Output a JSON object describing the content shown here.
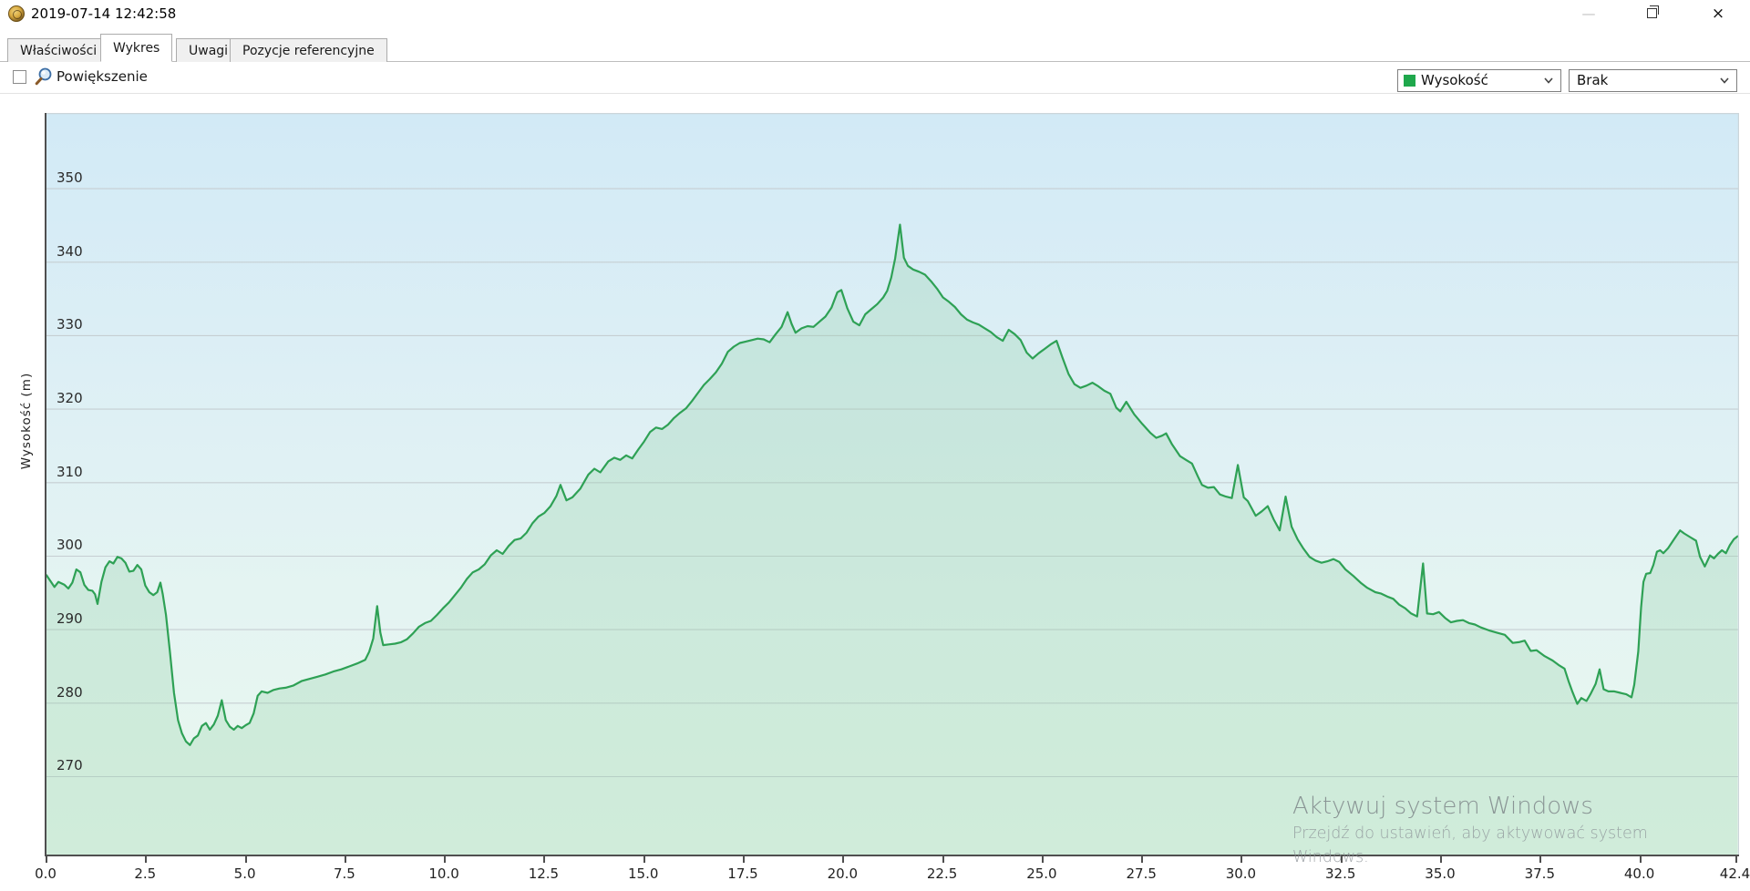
{
  "window": {
    "title": "2019-07-14 12:42:58",
    "controls": {
      "minimize": "—",
      "close": "×"
    }
  },
  "tabs": [
    {
      "label": "Właściwości",
      "active": false
    },
    {
      "label": "Wykres",
      "active": true
    },
    {
      "label": "Uwagi",
      "active": false
    },
    {
      "label": "Pozycje referencyjne",
      "active": false
    }
  ],
  "toolbar": {
    "zoom_label": "Powiększenie",
    "zoom_checkbox_checked": false,
    "series_select": {
      "value": "Wysokość",
      "swatch_color": "#1fa84c"
    },
    "overlay_select": {
      "value": "Brak"
    }
  },
  "watermark": {
    "line1": "Aktywuj system Windows",
    "line2": "Przejdź do ustawień, aby aktywować system",
    "line3": "Windows."
  },
  "colors": {
    "line": "#2ea155",
    "area_fill": "rgba(150,210,170,0.30)",
    "grid": "#c6ced2",
    "axis": "#4f4f4f"
  },
  "chart_data": {
    "type": "line",
    "title": "",
    "xlabel": "",
    "ylabel": "Wysokość (m)",
    "series_name": "Wysokość",
    "x_unit_hint": "distance (km)",
    "xlim": [
      0,
      42.48
    ],
    "ylim": [
      259.4,
      360.3
    ],
    "x_ticks": [
      0,
      2.5,
      5,
      7.5,
      10,
      12.5,
      15,
      17.5,
      20,
      22.5,
      25,
      27.5,
      30,
      32.5,
      35,
      37.5,
      40,
      42.4
    ],
    "y_ticks": [
      270,
      280,
      290,
      300,
      310,
      320,
      330,
      340,
      350
    ],
    "grid": "horizontal",
    "legend": "none",
    "points": [
      [
        0,
        297.4
      ],
      [
        0.1,
        296.6
      ],
      [
        0.2,
        295.8
      ],
      [
        0.3,
        296.5
      ],
      [
        0.45,
        296.1
      ],
      [
        0.55,
        295.6
      ],
      [
        0.65,
        296.4
      ],
      [
        0.75,
        298.2
      ],
      [
        0.85,
        297.8
      ],
      [
        0.95,
        296.1
      ],
      [
        1.05,
        295.4
      ],
      [
        1.15,
        295.3
      ],
      [
        1.22,
        294.8
      ],
      [
        1.28,
        293.5
      ],
      [
        1.38,
        296.5
      ],
      [
        1.48,
        298.5
      ],
      [
        1.58,
        299.3
      ],
      [
        1.68,
        299
      ],
      [
        1.78,
        299.9
      ],
      [
        1.88,
        299.7
      ],
      [
        1.98,
        299.1
      ],
      [
        2.08,
        297.9
      ],
      [
        2.18,
        298
      ],
      [
        2.28,
        298.8
      ],
      [
        2.38,
        298.2
      ],
      [
        2.48,
        296
      ],
      [
        2.58,
        295.1
      ],
      [
        2.68,
        294.7
      ],
      [
        2.78,
        295.1
      ],
      [
        2.86,
        296.4
      ],
      [
        2.92,
        294.8
      ],
      [
        3,
        292
      ],
      [
        3.1,
        286.9
      ],
      [
        3.2,
        281.4
      ],
      [
        3.3,
        277.7
      ],
      [
        3.4,
        275.9
      ],
      [
        3.5,
        274.8
      ],
      [
        3.6,
        274.3
      ],
      [
        3.7,
        275.2
      ],
      [
        3.8,
        275.6
      ],
      [
        3.9,
        276.9
      ],
      [
        4,
        277.3
      ],
      [
        4.1,
        276.4
      ],
      [
        4.2,
        277.1
      ],
      [
        4.3,
        278.3
      ],
      [
        4.4,
        280.4
      ],
      [
        4.5,
        277.7
      ],
      [
        4.6,
        276.8
      ],
      [
        4.7,
        276.4
      ],
      [
        4.8,
        276.9
      ],
      [
        4.9,
        276.6
      ],
      [
        5,
        277
      ],
      [
        5.1,
        277.3
      ],
      [
        5.2,
        278.6
      ],
      [
        5.3,
        281
      ],
      [
        5.4,
        281.6
      ],
      [
        5.55,
        281.4
      ],
      [
        5.7,
        281.8
      ],
      [
        5.85,
        282
      ],
      [
        6,
        282.1
      ],
      [
        6.2,
        282.4
      ],
      [
        6.4,
        283
      ],
      [
        6.6,
        283.3
      ],
      [
        6.8,
        283.6
      ],
      [
        7,
        283.9
      ],
      [
        7.2,
        284.3
      ],
      [
        7.4,
        284.6
      ],
      [
        7.6,
        285
      ],
      [
        7.8,
        285.4
      ],
      [
        8,
        285.9
      ],
      [
        8.1,
        287
      ],
      [
        8.2,
        288.8
      ],
      [
        8.3,
        293.2
      ],
      [
        8.38,
        289.6
      ],
      [
        8.45,
        287.9
      ],
      [
        8.6,
        288
      ],
      [
        8.75,
        288.1
      ],
      [
        8.9,
        288.3
      ],
      [
        9.05,
        288.7
      ],
      [
        9.2,
        289.5
      ],
      [
        9.35,
        290.4
      ],
      [
        9.5,
        290.9
      ],
      [
        9.65,
        291.2
      ],
      [
        9.8,
        292
      ],
      [
        9.95,
        292.9
      ],
      [
        10.1,
        293.7
      ],
      [
        10.25,
        294.7
      ],
      [
        10.4,
        295.7
      ],
      [
        10.55,
        296.9
      ],
      [
        10.7,
        297.8
      ],
      [
        10.85,
        298.2
      ],
      [
        11,
        298.9
      ],
      [
        11.15,
        300.1
      ],
      [
        11.3,
        300.8
      ],
      [
        11.45,
        300.3
      ],
      [
        11.6,
        301.4
      ],
      [
        11.75,
        302.2
      ],
      [
        11.9,
        302.4
      ],
      [
        12.05,
        303.2
      ],
      [
        12.2,
        304.5
      ],
      [
        12.35,
        305.4
      ],
      [
        12.5,
        305.9
      ],
      [
        12.65,
        306.8
      ],
      [
        12.8,
        308.2
      ],
      [
        12.9,
        309.7
      ],
      [
        13.05,
        307.6
      ],
      [
        13.2,
        308
      ],
      [
        13.4,
        309.2
      ],
      [
        13.6,
        311.1
      ],
      [
        13.75,
        311.9
      ],
      [
        13.9,
        311.4
      ],
      [
        14.1,
        312.9
      ],
      [
        14.25,
        313.4
      ],
      [
        14.4,
        313.1
      ],
      [
        14.55,
        313.7
      ],
      [
        14.7,
        313.3
      ],
      [
        14.85,
        314.5
      ],
      [
        15,
        315.6
      ],
      [
        15.15,
        316.9
      ],
      [
        15.3,
        317.5
      ],
      [
        15.45,
        317.3
      ],
      [
        15.6,
        317.9
      ],
      [
        15.75,
        318.8
      ],
      [
        15.9,
        319.5
      ],
      [
        16.05,
        320.1
      ],
      [
        16.2,
        321.1
      ],
      [
        16.35,
        322.2
      ],
      [
        16.5,
        323.3
      ],
      [
        16.65,
        324.1
      ],
      [
        16.8,
        325
      ],
      [
        16.95,
        326.2
      ],
      [
        17.1,
        327.8
      ],
      [
        17.25,
        328.5
      ],
      [
        17.4,
        329
      ],
      [
        17.55,
        329.2
      ],
      [
        17.7,
        329.4
      ],
      [
        17.85,
        329.6
      ],
      [
        18,
        329.5
      ],
      [
        18.15,
        329.1
      ],
      [
        18.3,
        330.2
      ],
      [
        18.45,
        331.2
      ],
      [
        18.6,
        333.2
      ],
      [
        18.7,
        331.6
      ],
      [
        18.8,
        330.4
      ],
      [
        18.95,
        331
      ],
      [
        19.1,
        331.3
      ],
      [
        19.25,
        331.2
      ],
      [
        19.4,
        331.9
      ],
      [
        19.55,
        332.6
      ],
      [
        19.7,
        333.8
      ],
      [
        19.85,
        335.9
      ],
      [
        19.95,
        336.2
      ],
      [
        20.1,
        333.7
      ],
      [
        20.25,
        331.9
      ],
      [
        20.4,
        331.4
      ],
      [
        20.55,
        332.9
      ],
      [
        20.7,
        333.6
      ],
      [
        20.85,
        334.3
      ],
      [
        21,
        335.2
      ],
      [
        21.1,
        336.1
      ],
      [
        21.2,
        337.9
      ],
      [
        21.3,
        340.5
      ],
      [
        21.42,
        345.1
      ],
      [
        21.52,
        340.6
      ],
      [
        21.62,
        339.5
      ],
      [
        21.75,
        339
      ],
      [
        21.9,
        338.7
      ],
      [
        22.05,
        338.3
      ],
      [
        22.2,
        337.4
      ],
      [
        22.35,
        336.4
      ],
      [
        22.5,
        335.2
      ],
      [
        22.65,
        334.6
      ],
      [
        22.8,
        333.9
      ],
      [
        22.95,
        332.9
      ],
      [
        23.1,
        332.2
      ],
      [
        23.25,
        331.8
      ],
      [
        23.4,
        331.5
      ],
      [
        23.55,
        331
      ],
      [
        23.7,
        330.5
      ],
      [
        23.85,
        329.8
      ],
      [
        24,
        329.3
      ],
      [
        24.15,
        330.8
      ],
      [
        24.3,
        330.2
      ],
      [
        24.45,
        329.4
      ],
      [
        24.6,
        327.7
      ],
      [
        24.75,
        326.9
      ],
      [
        24.9,
        327.6
      ],
      [
        25.05,
        328.2
      ],
      [
        25.2,
        328.8
      ],
      [
        25.35,
        329.3
      ],
      [
        25.5,
        327
      ],
      [
        25.65,
        324.8
      ],
      [
        25.8,
        323.4
      ],
      [
        25.95,
        322.9
      ],
      [
        26.1,
        323.2
      ],
      [
        26.25,
        323.6
      ],
      [
        26.4,
        323.1
      ],
      [
        26.55,
        322.5
      ],
      [
        26.7,
        322.1
      ],
      [
        26.85,
        320.2
      ],
      [
        26.95,
        319.7
      ],
      [
        27.1,
        321
      ],
      [
        27.3,
        319.3
      ],
      [
        27.5,
        318
      ],
      [
        27.7,
        316.8
      ],
      [
        27.85,
        316.1
      ],
      [
        28,
        316.4
      ],
      [
        28.1,
        316.7
      ],
      [
        28.25,
        315.2
      ],
      [
        28.45,
        313.6
      ],
      [
        28.6,
        313.1
      ],
      [
        28.75,
        312.6
      ],
      [
        28.9,
        310.8
      ],
      [
        29,
        309.7
      ],
      [
        29.15,
        309.3
      ],
      [
        29.3,
        309.4
      ],
      [
        29.45,
        308.4
      ],
      [
        29.6,
        308.1
      ],
      [
        29.75,
        307.9
      ],
      [
        29.9,
        312.4
      ],
      [
        30.05,
        308
      ],
      [
        30.15,
        307.5
      ],
      [
        30.35,
        305.5
      ],
      [
        30.5,
        306.1
      ],
      [
        30.65,
        306.8
      ],
      [
        30.8,
        305
      ],
      [
        30.95,
        303.5
      ],
      [
        31.1,
        308.1
      ],
      [
        31.25,
        304
      ],
      [
        31.4,
        302.3
      ],
      [
        31.55,
        301
      ],
      [
        31.7,
        299.9
      ],
      [
        31.85,
        299.4
      ],
      [
        32,
        299.1
      ],
      [
        32.15,
        299.3
      ],
      [
        32.3,
        299.6
      ],
      [
        32.45,
        299.2
      ],
      [
        32.6,
        298.2
      ],
      [
        32.8,
        297.3
      ],
      [
        33,
        296.3
      ],
      [
        33.15,
        295.7
      ],
      [
        33.35,
        295.1
      ],
      [
        33.5,
        294.9
      ],
      [
        33.65,
        294.5
      ],
      [
        33.8,
        294.2
      ],
      [
        33.95,
        293.4
      ],
      [
        34.1,
        292.9
      ],
      [
        34.25,
        292.2
      ],
      [
        34.4,
        291.8
      ],
      [
        34.55,
        299
      ],
      [
        34.65,
        292.2
      ],
      [
        34.8,
        292.1
      ],
      [
        34.95,
        292.4
      ],
      [
        35.1,
        291.6
      ],
      [
        35.25,
        291
      ],
      [
        35.4,
        291.2
      ],
      [
        35.55,
        291.3
      ],
      [
        35.7,
        290.9
      ],
      [
        35.85,
        290.7
      ],
      [
        36,
        290.3
      ],
      [
        36.2,
        289.9
      ],
      [
        36.4,
        289.6
      ],
      [
        36.6,
        289.3
      ],
      [
        36.8,
        288.2
      ],
      [
        36.95,
        288.3
      ],
      [
        37.1,
        288.5
      ],
      [
        37.25,
        287.1
      ],
      [
        37.4,
        287.2
      ],
      [
        37.6,
        286.4
      ],
      [
        37.8,
        285.8
      ],
      [
        37.95,
        285.2
      ],
      [
        38.1,
        284.7
      ],
      [
        38.2,
        283
      ],
      [
        38.3,
        281.5
      ],
      [
        38.42,
        279.9
      ],
      [
        38.52,
        280.7
      ],
      [
        38.65,
        280.3
      ],
      [
        38.75,
        281.2
      ],
      [
        38.88,
        282.6
      ],
      [
        38.98,
        284.6
      ],
      [
        39.08,
        281.9
      ],
      [
        39.2,
        281.6
      ],
      [
        39.35,
        281.6
      ],
      [
        39.5,
        281.4
      ],
      [
        39.65,
        281.2
      ],
      [
        39.78,
        280.8
      ],
      [
        39.85,
        282.5
      ],
      [
        39.95,
        287
      ],
      [
        40.02,
        293
      ],
      [
        40.08,
        296.5
      ],
      [
        40.15,
        297.6
      ],
      [
        40.25,
        297.7
      ],
      [
        40.33,
        298.8
      ],
      [
        40.42,
        300.6
      ],
      [
        40.5,
        300.8
      ],
      [
        40.58,
        300.4
      ],
      [
        40.7,
        301.1
      ],
      [
        40.85,
        302.3
      ],
      [
        41,
        303.5
      ],
      [
        41.1,
        303.1
      ],
      [
        41.25,
        302.6
      ],
      [
        41.4,
        302.1
      ],
      [
        41.5,
        299.9
      ],
      [
        41.62,
        298.6
      ],
      [
        41.75,
        300.1
      ],
      [
        41.85,
        299.7
      ],
      [
        41.95,
        300.3
      ],
      [
        42.05,
        300.8
      ],
      [
        42.15,
        300.4
      ],
      [
        42.25,
        301.5
      ],
      [
        42.35,
        302.3
      ],
      [
        42.44,
        302.7
      ]
    ]
  }
}
